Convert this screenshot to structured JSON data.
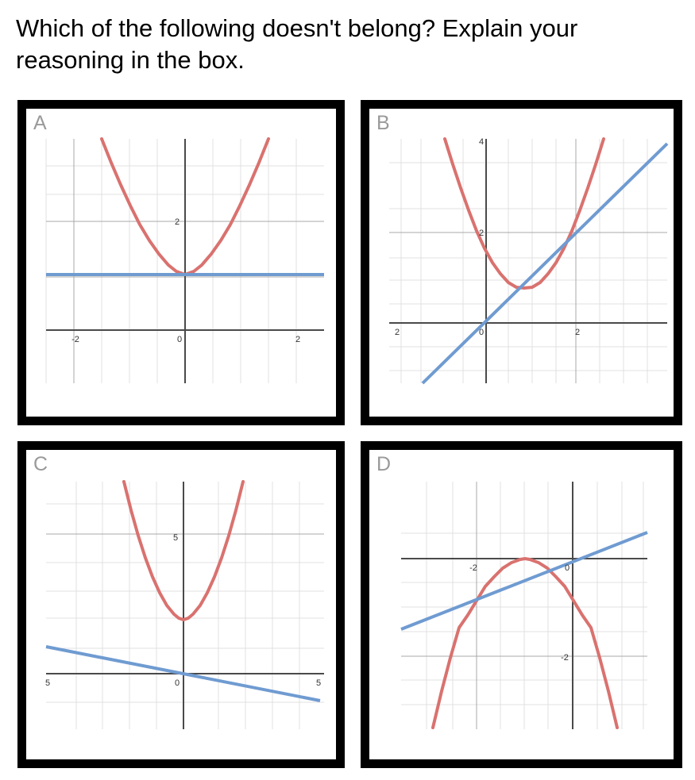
{
  "question": {
    "text": "Which of the following doesn't belong? Explain your reasoning in the box."
  },
  "colors": {
    "parabola": "#d9726f",
    "line": "#6f9bd1",
    "grid": "#dcdcdc",
    "gridMajor": "#a8a8a8",
    "axis": "#4a4a4a"
  },
  "panels": [
    {
      "label": "A",
      "xlim": [
        -2.3,
        2.5
      ],
      "ylim": [
        -1,
        3.8
      ],
      "x_ticks": [
        "-2",
        "0",
        "2"
      ],
      "y_ticks": [
        "2"
      ],
      "parabola": "y = x^2 + 1",
      "line": "y = 1"
    },
    {
      "label": "B",
      "xlim": [
        -1.6,
        3.5
      ],
      "ylim": [
        -1,
        4
      ],
      "x_ticks": [
        "2",
        "0",
        "2"
      ],
      "y_ticks": [
        "2",
        "4"
      ],
      "parabola": "y = 2(x - 1)^2 + 0.4",
      "line": "y = x"
    },
    {
      "label": "C",
      "xlim": [
        -5.5,
        5.5
      ],
      "ylim": [
        -2,
        7.5
      ],
      "x_ticks": [
        "5",
        "0",
        "5"
      ],
      "y_ticks": [
        "5"
      ],
      "parabola": "y = x^2 + 2",
      "line": "y = -x/3"
    },
    {
      "label": "D",
      "xlim": [
        -3.5,
        1.5
      ],
      "ylim": [
        -3.5,
        1
      ],
      "x_ticks": [
        "-2",
        "0"
      ],
      "y_ticks": [
        "-2"
      ],
      "parabola": "y = -(x + 1)^2",
      "line": "y = x/3"
    }
  ]
}
